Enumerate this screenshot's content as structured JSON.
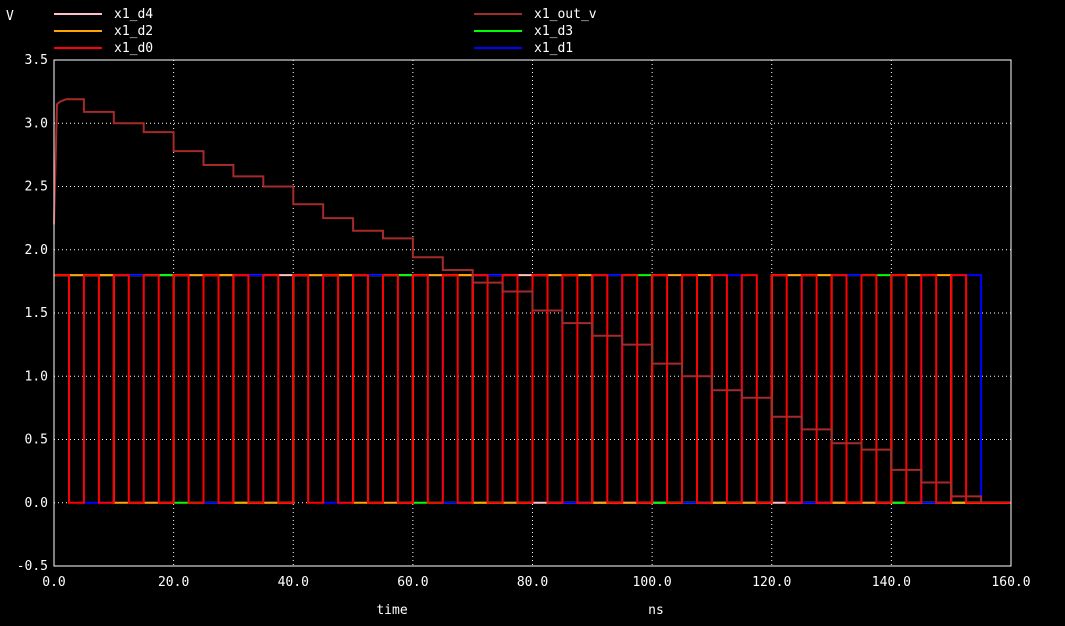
{
  "chart_data": {
    "type": "line",
    "ylabel": "V",
    "xlabel": "time",
    "xunit": "ns",
    "xlim": [
      0,
      160
    ],
    "ylim": [
      -0.5,
      3.5
    ],
    "xticks": [
      "0.0",
      "20.0",
      "40.0",
      "60.0",
      "80.0",
      "100.0",
      "120.0",
      "140.0",
      "160.0"
    ],
    "yticks": [
      "-0.5",
      "0.0",
      "0.5",
      "1.0",
      "1.5",
      "2.0",
      "2.5",
      "3.0",
      "3.5"
    ],
    "grid": true,
    "legend_placement": "top",
    "series": [
      {
        "name": "x1_d4",
        "color": "#ffc0cb",
        "kind": "digital",
        "period": 160,
        "high": 1.8,
        "low": 0,
        "start_high": true,
        "end": 155
      },
      {
        "name": "x1_d2",
        "color": "#ffa500",
        "kind": "digital",
        "period": 20,
        "high": 1.8,
        "low": 0,
        "start_high": true,
        "end": 155
      },
      {
        "name": "x1_d0",
        "color": "#ff0000",
        "kind": "digital",
        "period": 5,
        "high": 1.8,
        "low": 0,
        "start_high": true,
        "end": 155
      },
      {
        "name": "x1_out_v",
        "color": "#a52a2a",
        "kind": "analog",
        "x": [
          0,
          0.5,
          1,
          2,
          5,
          5,
          10,
          10,
          15,
          15,
          20,
          20,
          25,
          25,
          30,
          30,
          35,
          35,
          40,
          40,
          45,
          45,
          50,
          50,
          55,
          55,
          60,
          60,
          65,
          65,
          70,
          70,
          75,
          75,
          80,
          80,
          85,
          85,
          90,
          90,
          95,
          95,
          100,
          100,
          105,
          105,
          110,
          110,
          115,
          115,
          120,
          120,
          125,
          125,
          130,
          130,
          135,
          135,
          140,
          140,
          145,
          145,
          150,
          150,
          155,
          155
        ],
        "y": [
          2.2,
          3.15,
          3.17,
          3.19,
          3.19,
          3.09,
          3.09,
          3.0,
          3.0,
          2.93,
          2.93,
          2.78,
          2.78,
          2.67,
          2.67,
          2.58,
          2.58,
          2.5,
          2.5,
          2.36,
          2.36,
          2.25,
          2.25,
          2.15,
          2.15,
          2.09,
          2.09,
          1.94,
          1.94,
          1.84,
          1.84,
          1.74,
          1.74,
          1.67,
          1.67,
          1.52,
          1.52,
          1.42,
          1.42,
          1.32,
          1.32,
          1.25,
          1.25,
          1.1,
          1.1,
          1.0,
          1.0,
          0.89,
          0.89,
          0.83,
          0.83,
          0.68,
          0.68,
          0.58,
          0.58,
          0.47,
          0.47,
          0.42,
          0.42,
          0.26,
          0.26,
          0.16,
          0.16,
          0.05,
          0.05,
          0.0
        ]
      },
      {
        "name": "x1_d3",
        "color": "#00ff00",
        "kind": "digital",
        "period": 40,
        "high": 1.8,
        "low": 0,
        "start_high": true,
        "end": 155
      },
      {
        "name": "x1_d1",
        "color": "#0000ff",
        "kind": "digital",
        "period": 10,
        "high": 1.8,
        "low": 0,
        "start_high": true,
        "end": 155
      }
    ]
  }
}
